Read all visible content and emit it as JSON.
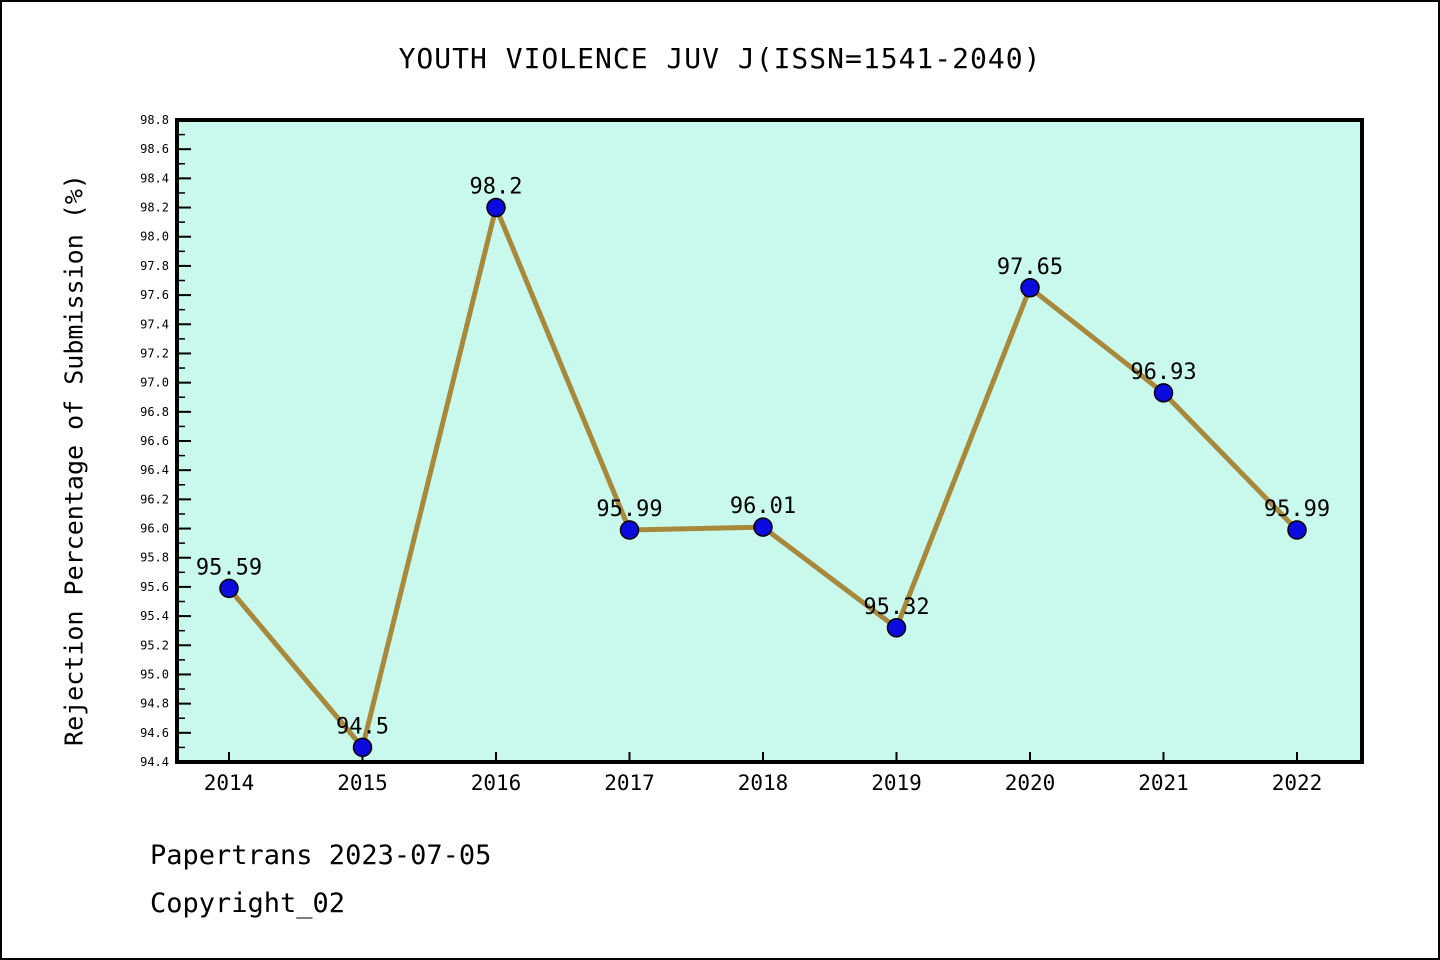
{
  "page": {
    "footer_line1": "Papertrans 2023-07-05",
    "footer_line2": "Copyright_02"
  },
  "chart_data": {
    "type": "line",
    "title": "YOUTH VIOLENCE JUV J(ISSN=1541-2040)",
    "xlabel": "",
    "ylabel": "Rejection Percentage of Submission (%)",
    "categories": [
      "2014",
      "2015",
      "2016",
      "2017",
      "2018",
      "2019",
      "2020",
      "2021",
      "2022"
    ],
    "values": [
      95.59,
      94.5,
      98.2,
      95.99,
      96.01,
      95.32,
      97.65,
      96.93,
      95.99
    ],
    "point_labels": [
      "95.59",
      "94.5",
      "98.2",
      "95.99",
      "96.01",
      "95.32",
      "97.65",
      "96.93",
      "95.99"
    ],
    "ylim": [
      94.4,
      98.8
    ],
    "ytick_step": 0.2,
    "ytick_minor_step": 0.1,
    "grid": false,
    "legend": "none",
    "marker": "circle",
    "colors": {
      "line": "#a8893c",
      "marker_fill": "#0b0bdf",
      "marker_edge": "#000000",
      "plot_bg": "#c9f9ec",
      "page_bg": "#ffffff",
      "axis": "#000000",
      "text": "#000000"
    }
  }
}
